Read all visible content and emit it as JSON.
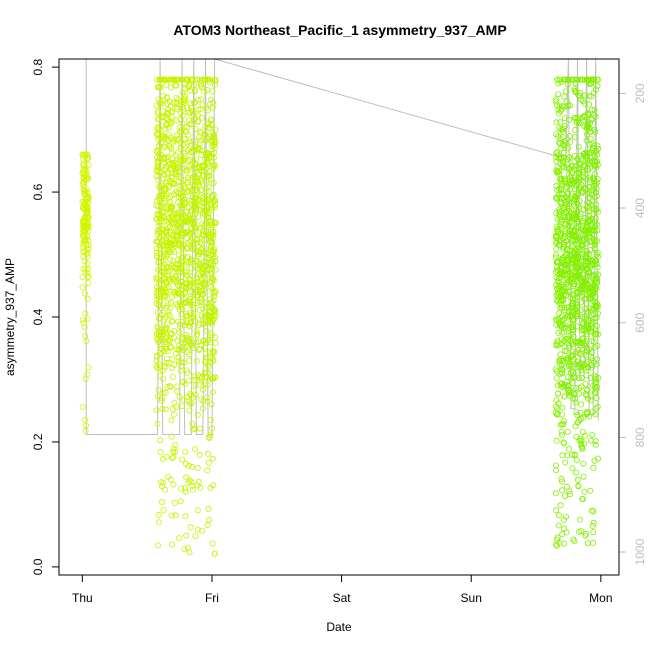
{
  "chart_data": {
    "type": "scatter",
    "title": "ATOM3 Northeast_Pacific_1 asymmetry_937_AMP",
    "xlabel": "Date",
    "ylabel": "asymmetry_937_AMP",
    "x_ticks": [
      "Thu",
      "Fri",
      "Sat",
      "Sun",
      "Mon"
    ],
    "x_range_days": [
      -0.18,
      4.14
    ],
    "ylim": [
      -0.013,
      0.813
    ],
    "y_ticks": [
      "0.0",
      "0.2",
      "0.4",
      "0.6",
      "0.8"
    ],
    "y2_ticks": [
      "200",
      "400",
      "600",
      "800",
      "1000"
    ],
    "y2lim": [
      140,
      1040
    ],
    "grid": false,
    "legend": "none",
    "colors": {
      "early": "#d4f500",
      "late": "#7ff000",
      "altitude_line": "#bebebe",
      "axis": "#000000",
      "y2_text": "#bebebe"
    },
    "clusters": [
      {
        "name": "",
        "x_start": 0.0,
        "x_end": 0.05,
        "y_mean": 0.57,
        "y_spread": 0.05,
        "y_min": 0.15,
        "y_max": 0.66,
        "count": 160
      },
      {
        "name": "",
        "x_start": 0.57,
        "x_end": 1.03,
        "y_mean": 0.55,
        "y_spread": 0.14,
        "y_min": 0.01,
        "y_max": 0.78,
        "count": 1400
      },
      {
        "name": "",
        "x_start": 3.65,
        "x_end": 3.98,
        "y_mean": 0.52,
        "y_spread": 0.15,
        "y_min": 0.03,
        "y_max": 0.78,
        "count": 1200
      }
    ],
    "altitude_series": [
      {
        "x": 0.0,
        "y2": 140
      },
      {
        "x": 0.03,
        "y2": 140
      },
      {
        "x": 0.03,
        "y2": 795
      },
      {
        "x": 0.58,
        "y2": 795
      },
      {
        "x": 0.6,
        "y2": 140
      },
      {
        "x": 0.62,
        "y2": 795
      },
      {
        "x": 0.75,
        "y2": 795
      },
      {
        "x": 0.77,
        "y2": 140
      },
      {
        "x": 0.79,
        "y2": 795
      },
      {
        "x": 0.84,
        "y2": 795
      },
      {
        "x": 0.86,
        "y2": 140
      },
      {
        "x": 0.88,
        "y2": 795
      },
      {
        "x": 0.93,
        "y2": 795
      },
      {
        "x": 0.95,
        "y2": 140
      },
      {
        "x": 0.97,
        "y2": 795
      },
      {
        "x": 1.0,
        "y2": 795
      },
      {
        "x": 1.02,
        "y2": 140
      },
      {
        "x": 3.67,
        "y2": 310
      },
      {
        "x": 3.73,
        "y2": 310
      },
      {
        "x": 3.75,
        "y2": 140
      },
      {
        "x": 3.77,
        "y2": 750
      },
      {
        "x": 3.8,
        "y2": 750
      },
      {
        "x": 3.82,
        "y2": 140
      },
      {
        "x": 3.84,
        "y2": 700
      },
      {
        "x": 3.87,
        "y2": 700
      },
      {
        "x": 3.89,
        "y2": 140
      },
      {
        "x": 3.91,
        "y2": 760
      },
      {
        "x": 3.94,
        "y2": 760
      },
      {
        "x": 3.96,
        "y2": 140
      },
      {
        "x": 3.98,
        "y2": 770
      }
    ]
  }
}
